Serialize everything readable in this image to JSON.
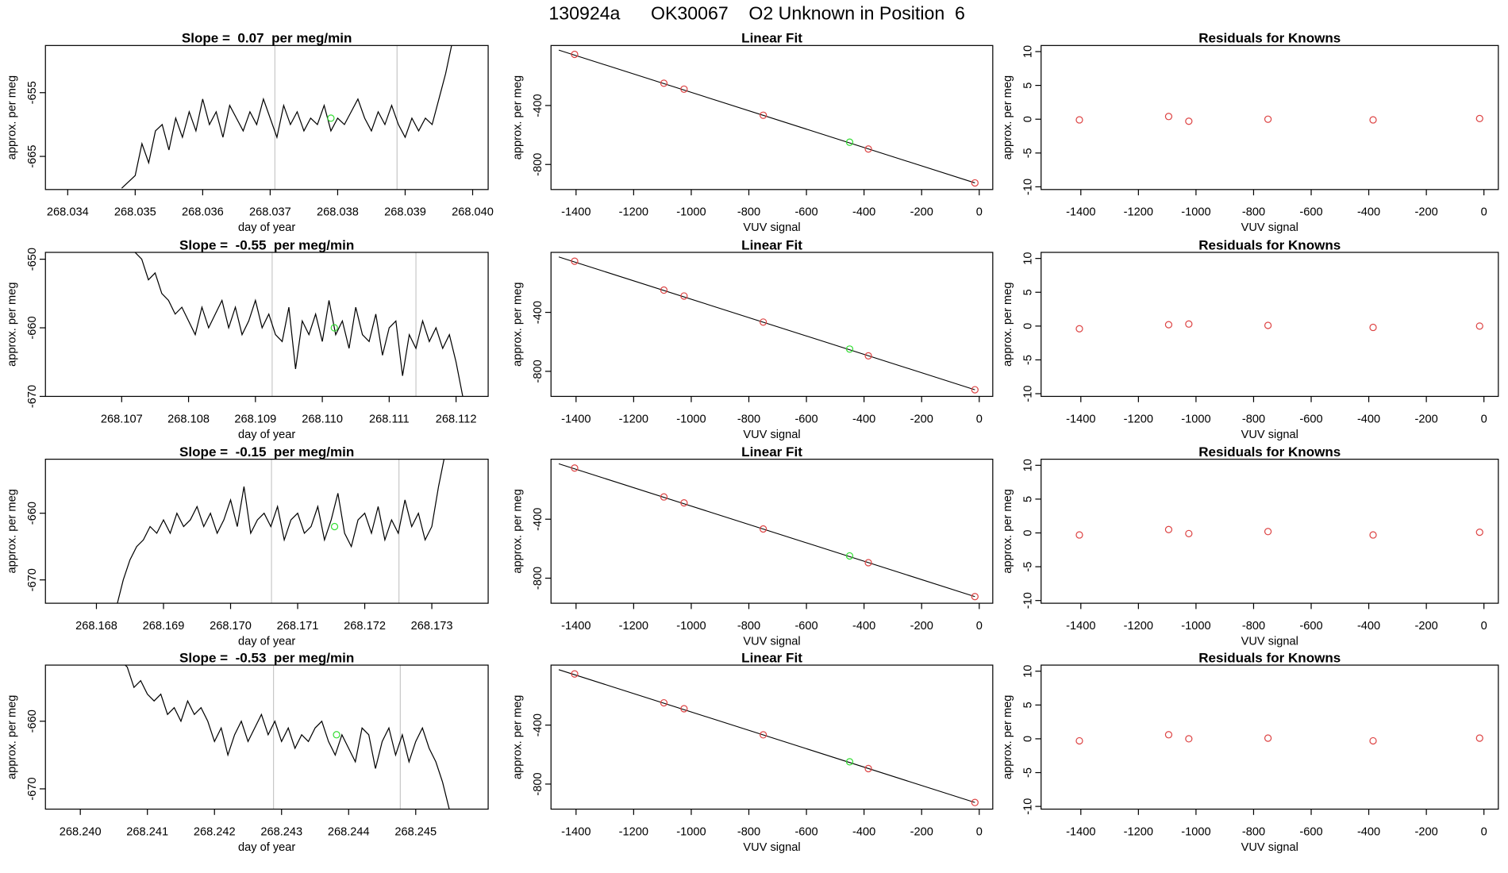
{
  "title": "130924a      OK30067    O2 Unknown in Position  6",
  "chart_data": [
    {
      "type": "line",
      "title": "Slope =  0.07  per meg/min",
      "xlabel": "day of year",
      "ylabel": "approx. per meg",
      "color": "#000000",
      "x": [
        268.0348,
        268.0349,
        268.035,
        268.0351,
        268.0352,
        268.0353,
        268.0354,
        268.0355,
        268.0356,
        268.0357,
        268.0358,
        268.0359,
        268.036,
        268.0361,
        268.0362,
        268.0363,
        268.0364,
        268.0365,
        268.0366,
        268.0367,
        268.0368,
        268.0369,
        268.037,
        268.0371,
        268.0372,
        268.0373,
        268.0374,
        268.0375,
        268.0376,
        268.0377,
        268.0378,
        268.0379,
        268.038,
        268.0381,
        268.0382,
        268.0383,
        268.0384,
        268.0385,
        268.0386,
        268.0387,
        268.0388,
        268.0389,
        268.039,
        268.0391,
        268.0392,
        268.0393,
        268.0394,
        268.0395,
        268.0396,
        268.0397
      ],
      "values": [
        -670,
        -669,
        -668,
        -663,
        -666,
        -661,
        -660,
        -664,
        -659,
        -662,
        -658,
        -661,
        -656,
        -660,
        -658,
        -662,
        -657,
        -659,
        -661,
        -658,
        -660,
        -656,
        -659,
        -662,
        -657,
        -660,
        -658,
        -661,
        -659,
        -660,
        -657,
        -661,
        -659,
        -660,
        -658,
        -656,
        -659,
        -661,
        -658,
        -660,
        -657,
        -660,
        -662,
        -659,
        -661,
        -659,
        -660,
        -656,
        -652,
        -647
      ],
      "xlim": [
        268.03367,
        268.04023
      ],
      "ylim": [
        -670.2,
        -647.6
      ],
      "xticks": [
        268.034,
        268.035,
        268.036,
        268.037,
        268.038,
        268.039,
        {
          "value": 268.04,
          "label": "268.040"
        }
      ],
      "yticks": [
        -655,
        -665
      ],
      "vlines": [
        268.03707,
        268.03888
      ],
      "vline_color": "#c8c8c8",
      "highlight_x": 268.0379,
      "highlight_y": -659,
      "highlight_color": "#33dd33"
    },
    {
      "type": "scatter",
      "title": "Linear Fit",
      "xlabel": "VUV signal",
      "ylabel": "approx. per meg",
      "color": "#dd4444",
      "x": [
        -1405,
        -1095,
        -1025,
        -750,
        -385,
        -15
      ],
      "values": [
        -53,
        -249,
        -289,
        -466,
        -695,
        -925
      ],
      "xlim": [
        -1487,
        47
      ],
      "ylim": [
        -970,
        7
      ],
      "xticks": [
        -1400,
        -1200,
        -1000,
        -800,
        -600,
        -400,
        -200,
        0
      ],
      "yticks": [
        -400,
        -800
      ],
      "fit_x": [
        -1460,
        -15
      ],
      "fit_y": [
        -24,
        -925
      ],
      "fit_color": "#000000",
      "highlight_x": -450,
      "highlight_y": -649,
      "highlight_color": "#33dd33"
    },
    {
      "type": "scatter",
      "title": "Residuals for Knowns",
      "xlabel": "VUV signal",
      "ylabel": "approx. per meg",
      "color": "#dd4444",
      "x": [
        -1405,
        -1095,
        -1025,
        -750,
        -385,
        -15
      ],
      "values": [
        -0.1,
        0.4,
        -0.3,
        0,
        -0.1,
        0.1
      ],
      "xlim": [
        -1538,
        50
      ],
      "ylim": [
        -10.4,
        10.9
      ],
      "xticks": [
        -1400,
        -1200,
        -1000,
        -800,
        -600,
        -400,
        -200,
        0
      ],
      "yticks": [
        10,
        5,
        0,
        -5,
        -10
      ]
    },
    {
      "type": "line",
      "title": "Slope =  -0.55  per meg/min",
      "xlabel": "day of year",
      "ylabel": "approx. per meg",
      "color": "#000000",
      "x": [
        268.1072,
        268.1073,
        268.1074,
        268.1075,
        268.1076,
        268.1077,
        268.1078,
        268.1079,
        268.108,
        268.1081,
        268.1082,
        268.1083,
        268.1084,
        268.1085,
        268.1086,
        268.1087,
        268.1088,
        268.1089,
        268.109,
        268.1091,
        268.1092,
        268.1093,
        268.1094,
        268.1095,
        268.1096,
        268.1097,
        268.1098,
        268.1099,
        268.11,
        268.1101,
        268.1102,
        268.1103,
        268.1104,
        268.1105,
        268.1106,
        268.1107,
        268.1108,
        268.1109,
        268.111,
        268.1111,
        268.1112,
        268.1113,
        268.1114,
        268.1115,
        268.1116,
        268.1117,
        268.1118,
        268.1119,
        268.112,
        268.1121
      ],
      "values": [
        -649,
        -650,
        -653,
        -652,
        -655,
        -656,
        -658,
        -657,
        -659,
        -661,
        -657,
        -660,
        -658,
        -656,
        -660,
        -657,
        -661,
        -659,
        -656,
        -660,
        -658,
        -661,
        -662,
        -657,
        -666,
        -659,
        -661,
        -658,
        -662,
        -656,
        -661,
        -659,
        -663,
        -657,
        -661,
        -662,
        -658,
        -664,
        -660,
        -659,
        -667,
        -661,
        -663,
        -659,
        -662,
        -660,
        -663,
        -661,
        -665,
        -670
      ],
      "xlim": [
        268.10586,
        268.11248
      ],
      "ylim": [
        -670,
        -649
      ],
      "xticks": [
        268.107,
        268.108,
        268.109,
        {
          "value": 268.11,
          "label": "268.110"
        },
        268.111,
        268.112
      ],
      "yticks": [
        -650,
        -660,
        -670
      ],
      "vlines": [
        268.10925,
        268.1114
      ],
      "vline_color": "#c8c8c8",
      "highlight_x": 268.11018,
      "highlight_y": -660,
      "highlight_color": "#33dd33"
    },
    {
      "type": "scatter",
      "title": "Linear Fit",
      "xlabel": "VUV signal",
      "ylabel": "approx. per meg",
      "color": "#dd4444",
      "x": [
        -1405,
        -1095,
        -1025,
        -750,
        -385,
        -15
      ],
      "values": [
        -53,
        -249,
        -289,
        -466,
        -695,
        -925
      ],
      "xlim": [
        -1487,
        47
      ],
      "ylim": [
        -970,
        7
      ],
      "xticks": [
        -1400,
        -1200,
        -1000,
        -800,
        -600,
        -400,
        -200,
        0
      ],
      "yticks": [
        -400,
        -800
      ],
      "fit_x": [
        -1460,
        -15
      ],
      "fit_y": [
        -24,
        -925
      ],
      "fit_color": "#000000",
      "highlight_x": -450,
      "highlight_y": -649,
      "highlight_color": "#33dd33"
    },
    {
      "type": "scatter",
      "title": "Residuals for Knowns",
      "xlabel": "VUV signal",
      "ylabel": "approx. per meg",
      "color": "#dd4444",
      "x": [
        -1405,
        -1095,
        -1025,
        -750,
        -385,
        -15
      ],
      "values": [
        -0.4,
        0.2,
        0.3,
        0.1,
        -0.2,
        0
      ],
      "xlim": [
        -1538,
        50
      ],
      "ylim": [
        -10.4,
        10.9
      ],
      "xticks": [
        -1400,
        -1200,
        -1000,
        -800,
        -600,
        -400,
        -200,
        0
      ],
      "yticks": [
        10,
        5,
        0,
        -5,
        -10
      ]
    },
    {
      "type": "line",
      "title": "Slope =  -0.15  per meg/min",
      "xlabel": "day of year",
      "ylabel": "approx. per meg",
      "color": "#000000",
      "x": [
        268.1683,
        268.1684,
        268.1685,
        268.1686,
        268.1687,
        268.1688,
        268.1689,
        268.169,
        268.1691,
        268.1692,
        268.1693,
        268.1694,
        268.1695,
        268.1696,
        268.1697,
        268.1698,
        268.1699,
        268.17,
        268.1701,
        268.1702,
        268.1703,
        268.1704,
        268.1705,
        268.1706,
        268.1707,
        268.1708,
        268.1709,
        268.171,
        268.1711,
        268.1712,
        268.1713,
        268.1714,
        268.1715,
        268.1716,
        268.1717,
        268.1718,
        268.1719,
        268.172,
        268.1721,
        268.1722,
        268.1723,
        268.1724,
        268.1725,
        268.1726,
        268.1727,
        268.1728,
        268.1729,
        268.173,
        268.1731,
        268.1732
      ],
      "values": [
        -674,
        -670,
        -667,
        -665,
        -664,
        -662,
        -663,
        -661,
        -663,
        -660,
        -662,
        -661,
        -659,
        -662,
        -660,
        -663,
        -661,
        -658,
        -662,
        -656,
        -663,
        -661,
        -660,
        -662,
        -659,
        -664,
        -661,
        -660,
        -663,
        -662,
        -659,
        -664,
        -661,
        -657,
        -663,
        -665,
        -661,
        -660,
        -663,
        -659,
        -664,
        -661,
        -663,
        -658,
        -662,
        -660,
        -664,
        -662,
        -656,
        -651
      ],
      "xlim": [
        268.16724,
        268.17384
      ],
      "ylim": [
        -673.5,
        -651.9
      ],
      "xticks": [
        268.168,
        268.169,
        {
          "value": 268.17,
          "label": "268.170"
        },
        268.171,
        268.172,
        268.173
      ],
      "yticks": [
        -660,
        -670
      ],
      "vlines": [
        268.17061,
        268.17251
      ],
      "vline_color": "#c8c8c8",
      "highlight_x": 268.17155,
      "highlight_y": -662,
      "highlight_color": "#33dd33"
    },
    {
      "type": "scatter",
      "title": "Linear Fit",
      "xlabel": "VUV signal",
      "ylabel": "approx. per meg",
      "color": "#dd4444",
      "x": [
        -1405,
        -1095,
        -1025,
        -750,
        -385,
        -15
      ],
      "values": [
        -53,
        -249,
        -289,
        -466,
        -695,
        -925
      ],
      "xlim": [
        -1487,
        47
      ],
      "ylim": [
        -970,
        7
      ],
      "xticks": [
        -1400,
        -1200,
        -1000,
        -800,
        -600,
        -400,
        -200,
        0
      ],
      "yticks": [
        -400,
        -800
      ],
      "fit_x": [
        -1460,
        -15
      ],
      "fit_y": [
        -24,
        -925
      ],
      "fit_color": "#000000",
      "highlight_x": -450,
      "highlight_y": -649,
      "highlight_color": "#33dd33"
    },
    {
      "type": "scatter",
      "title": "Residuals for Knowns",
      "xlabel": "VUV signal",
      "ylabel": "approx. per meg",
      "color": "#dd4444",
      "x": [
        -1405,
        -1095,
        -1025,
        -750,
        -385,
        -15
      ],
      "values": [
        -0.3,
        0.5,
        -0.1,
        0.2,
        -0.3,
        0.1
      ],
      "xlim": [
        -1538,
        50
      ],
      "ylim": [
        -10.4,
        10.9
      ],
      "xticks": [
        -1400,
        -1200,
        -1000,
        -800,
        -600,
        -400,
        -200,
        0
      ],
      "yticks": [
        10,
        5,
        0,
        -5,
        -10
      ]
    },
    {
      "type": "line",
      "title": "Slope =  -0.53  per meg/min",
      "xlabel": "day of year",
      "ylabel": "approx. per meg",
      "color": "#000000",
      "x": [
        268.2406,
        268.2407,
        268.2408,
        268.2409,
        268.241,
        268.2411,
        268.2412,
        268.2413,
        268.2414,
        268.2415,
        268.2416,
        268.2417,
        268.2418,
        268.2419,
        268.242,
        268.2421,
        268.2422,
        268.2423,
        268.2424,
        268.2425,
        268.2426,
        268.2427,
        268.2428,
        268.2429,
        268.243,
        268.2431,
        268.2432,
        268.2433,
        268.2434,
        268.2435,
        268.2436,
        268.2437,
        268.2438,
        268.2439,
        268.244,
        268.2441,
        268.2442,
        268.2443,
        268.2444,
        268.2445,
        268.2446,
        268.2447,
        268.2448,
        268.2449,
        268.245,
        268.2451,
        268.2452,
        268.2453,
        268.2454,
        268.2455
      ],
      "values": [
        -651,
        -652,
        -655,
        -654,
        -656,
        -657,
        -656,
        -659,
        -658,
        -660,
        -657,
        -659,
        -658,
        -660,
        -663,
        -661,
        -665,
        -662,
        -660,
        -663,
        -661,
        -659,
        -662,
        -660,
        -663,
        -661,
        -664,
        -662,
        -663,
        -661,
        -660,
        -663,
        -665,
        -662,
        -664,
        -666,
        -661,
        -662,
        -667,
        -663,
        -661,
        -665,
        -662,
        -666,
        -663,
        -661,
        -664,
        -666,
        -669,
        -673
      ],
      "xlim": [
        268.23948,
        268.24608
      ],
      "ylim": [
        -673,
        -651.7
      ],
      "xticks": [
        {
          "value": 268.24,
          "label": "268.240"
        },
        268.241,
        268.242,
        268.243,
        268.244,
        268.245
      ],
      "yticks": [
        -660,
        -670
      ],
      "vlines": [
        268.24288,
        268.24477
      ],
      "vline_color": "#c8c8c8",
      "highlight_x": 268.24382,
      "highlight_y": -662,
      "highlight_color": "#33dd33"
    },
    {
      "type": "scatter",
      "title": "Linear Fit",
      "xlabel": "VUV signal",
      "ylabel": "approx. per meg",
      "color": "#dd4444",
      "x": [
        -1405,
        -1095,
        -1025,
        -750,
        -385,
        -15
      ],
      "values": [
        -53,
        -249,
        -289,
        -466,
        -695,
        -925
      ],
      "xlim": [
        -1487,
        47
      ],
      "ylim": [
        -970,
        7
      ],
      "xticks": [
        -1400,
        -1200,
        -1000,
        -800,
        -600,
        -400,
        -200,
        0
      ],
      "yticks": [
        -400,
        -800
      ],
      "fit_x": [
        -1460,
        -15
      ],
      "fit_y": [
        -24,
        -925
      ],
      "fit_color": "#000000",
      "highlight_x": -450,
      "highlight_y": -649,
      "highlight_color": "#33dd33"
    },
    {
      "type": "scatter",
      "title": "Residuals for Knowns",
      "xlabel": "VUV signal",
      "ylabel": "approx. per meg",
      "color": "#dd4444",
      "x": [
        -1405,
        -1095,
        -1025,
        -750,
        -385,
        -15
      ],
      "values": [
        -0.3,
        0.6,
        0,
        0.1,
        -0.3,
        0.1
      ],
      "xlim": [
        -1538,
        50
      ],
      "ylim": [
        -10.4,
        10.9
      ],
      "xticks": [
        -1400,
        -1200,
        -1000,
        -800,
        -600,
        -400,
        -200,
        0
      ],
      "yticks": [
        10,
        5,
        0,
        -5,
        -10
      ]
    }
  ]
}
